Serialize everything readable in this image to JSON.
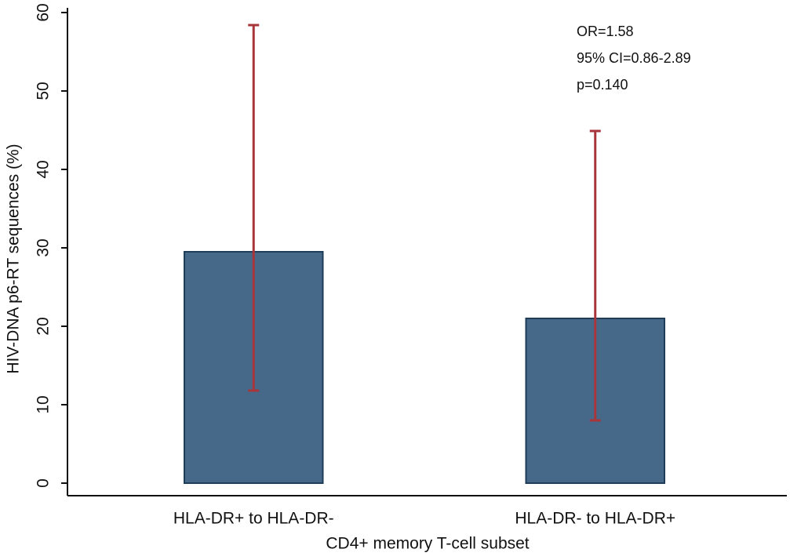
{
  "chart_data": {
    "type": "bar",
    "categories": [
      "HLA-DR+ to HLA-DR-",
      "HLA-DR- to HLA-DR+"
    ],
    "values": [
      29.5,
      21
    ],
    "error_low": [
      11.8,
      8
    ],
    "error_high": [
      58.4,
      44.9
    ],
    "color": "#46698a",
    "error_color": "#a8353a",
    "xlabel": "CD4+ memory T-cell subset",
    "ylabel": "HIV-DNA p6-RT sequences (%)",
    "ylim": [
      -1.6,
      60.6
    ],
    "yticks": [
      0,
      10,
      20,
      30,
      40,
      50,
      60
    ],
    "grid": false,
    "annotations": [
      "OR=1.58",
      "95% CI=0.86-2.89",
      "p=0.140"
    ]
  }
}
